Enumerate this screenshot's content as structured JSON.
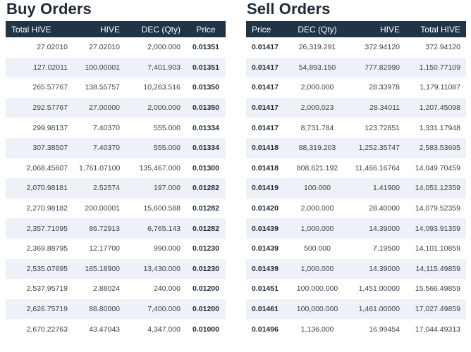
{
  "buy": {
    "title": "Buy Orders",
    "headers": [
      "Total HIVE",
      "HIVE",
      "DEC (Qty)",
      "Price"
    ],
    "rows": [
      [
        "27.02010",
        "27.02010",
        "2,000.000",
        "0.01351"
      ],
      [
        "127.02011",
        "100.00001",
        "7,401.903",
        "0.01351"
      ],
      [
        "265.57767",
        "138.55757",
        "10,263.516",
        "0.01350"
      ],
      [
        "292.57767",
        "27.00000",
        "2,000.000",
        "0.01350"
      ],
      [
        "299.98137",
        "7.40370",
        "555.000",
        "0.01334"
      ],
      [
        "307.38507",
        "7.40370",
        "555.000",
        "0.01334"
      ],
      [
        "2,068.45607",
        "1,761.07100",
        "135,467.000",
        "0.01300"
      ],
      [
        "2,070.98181",
        "2.52574",
        "197.000",
        "0.01282"
      ],
      [
        "2,270.98182",
        "200.00001",
        "15,600.588",
        "0.01282"
      ],
      [
        "2,357.71095",
        "86.72913",
        "6,765.143",
        "0.01282"
      ],
      [
        "2,369.88795",
        "12.17700",
        "990.000",
        "0.01230"
      ],
      [
        "2,535.07695",
        "165.18900",
        "13,430.000",
        "0.01230"
      ],
      [
        "2,537.95719",
        "2.88024",
        "240.000",
        "0.01200"
      ],
      [
        "2,626.75719",
        "88.80000",
        "7,400.000",
        "0.01200"
      ],
      [
        "2,670.22763",
        "43.47043",
        "4,347.000",
        "0.01000"
      ]
    ]
  },
  "sell": {
    "title": "Sell Orders",
    "headers": [
      "Price",
      "DEC (Qty)",
      "HIVE",
      "Total HIVE"
    ],
    "rows": [
      [
        "0.01417",
        "26,319.291",
        "372.94120",
        "372.94120"
      ],
      [
        "0.01417",
        "54,893.150",
        "777.82990",
        "1,150.77109"
      ],
      [
        "0.01417",
        "2,000.000",
        "28.33978",
        "1,179.11087"
      ],
      [
        "0.01417",
        "2,000.023",
        "28.34011",
        "1,207.45098"
      ],
      [
        "0.01417",
        "8,731.784",
        "123.72851",
        "1,331.17948"
      ],
      [
        "0.01418",
        "88,319.203",
        "1,252.35747",
        "2,583.53695"
      ],
      [
        "0.01418",
        "808,621.192",
        "11,466.16764",
        "14,049.70459"
      ],
      [
        "0.01419",
        "100.000",
        "1.41900",
        "14,051.12359"
      ],
      [
        "0.01420",
        "2,000.000",
        "28.40000",
        "14,079.52359"
      ],
      [
        "0.01439",
        "1,000.000",
        "14.39000",
        "14,093.91359"
      ],
      [
        "0.01439",
        "500.000",
        "7.19500",
        "14,101.10859"
      ],
      [
        "0.01439",
        "1,000.000",
        "14.39000",
        "14,115.49859"
      ],
      [
        "0.01451",
        "100,000.000",
        "1,451.00000",
        "15,566.49859"
      ],
      [
        "0.01461",
        "100,000.000",
        "1,461.00000",
        "17,027.49859"
      ],
      [
        "0.01496",
        "1,136.000",
        "16.99454",
        "17,044.49313"
      ]
    ]
  }
}
